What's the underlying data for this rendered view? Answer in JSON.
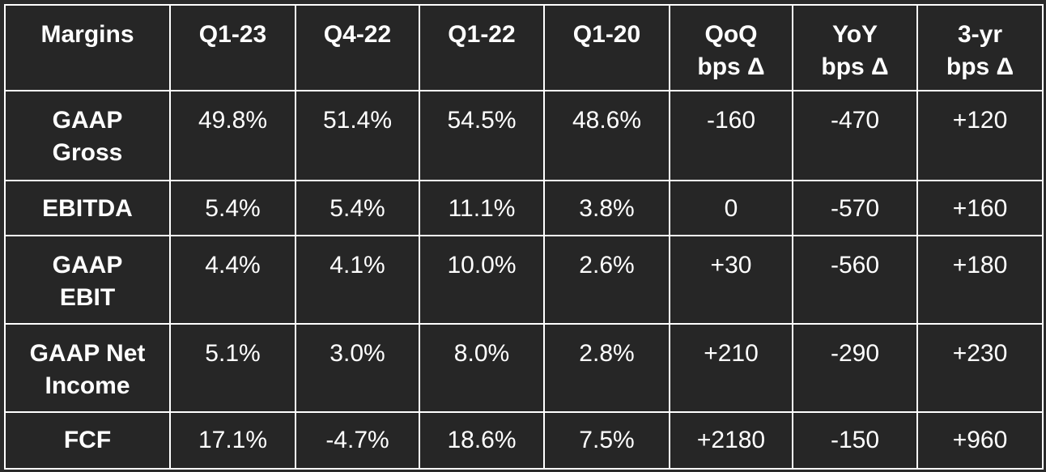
{
  "table": {
    "headers": [
      "Margins",
      "Q1-23",
      "Q4-22",
      "Q1-22",
      "Q1-20",
      "QoQ\nbps Δ",
      "YoY\nbps Δ",
      "3-yr\nbps Δ"
    ],
    "header_lines": [
      [
        "Margins"
      ],
      [
        "Q1-23"
      ],
      [
        "Q4-22"
      ],
      [
        "Q1-22"
      ],
      [
        "Q1-20"
      ],
      [
        "QoQ",
        "bps Δ"
      ],
      [
        "YoY",
        "bps Δ"
      ],
      [
        "3-yr",
        "bps Δ"
      ]
    ],
    "rows": [
      {
        "label_lines": [
          "GAAP",
          "Gross"
        ],
        "cells": [
          "49.8%",
          "51.4%",
          "54.5%",
          "48.6%",
          "-160",
          "-470",
          "+120"
        ]
      },
      {
        "label_lines": [
          "EBITDA"
        ],
        "cells": [
          "5.4%",
          "5.4%",
          "11.1%",
          "3.8%",
          "0",
          "-570",
          "+160"
        ]
      },
      {
        "label_lines": [
          "GAAP",
          "EBIT"
        ],
        "cells": [
          "4.4%",
          "4.1%",
          "10.0%",
          "2.6%",
          "+30",
          "-560",
          "+180"
        ]
      },
      {
        "label_lines": [
          "GAAP Net",
          "Income"
        ],
        "cells": [
          "5.1%",
          "3.0%",
          "8.0%",
          "2.8%",
          "+210",
          "-290",
          "+230"
        ]
      },
      {
        "label_lines": [
          "FCF"
        ],
        "cells": [
          "17.1%",
          "-4.7%",
          "18.6%",
          "7.5%",
          "+2180",
          "-150",
          "+960"
        ]
      }
    ]
  },
  "colors": {
    "background": "#262626",
    "text": "#ffffff",
    "grid": "#ffffff"
  }
}
